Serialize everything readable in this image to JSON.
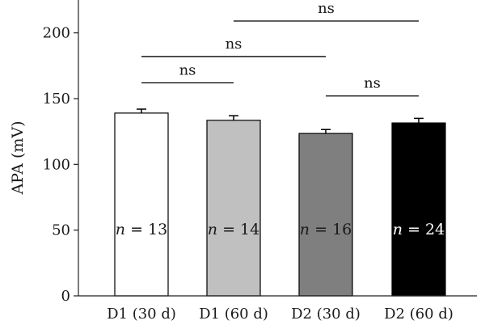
{
  "chart_data": {
    "type": "bar",
    "ylabel": "APA (mV)",
    "ylim": [
      0,
      225
    ],
    "yticks": [
      0,
      50,
      100,
      150,
      200
    ],
    "categories": [
      "D1 (30 d)",
      "D1 (60 d)",
      "D2 (30 d)",
      "D2 (60 d)"
    ],
    "values": [
      139,
      133.5,
      123.5,
      131.5
    ],
    "errors": [
      3,
      3.5,
      3,
      3.5
    ],
    "bar_colors": [
      "#ffffff",
      "#c0c0c0",
      "#7f7f7f",
      "#000000"
    ],
    "bar_labels": [
      {
        "var": "n",
        "text": " = 13",
        "color": "#1a1a1a"
      },
      {
        "var": "n",
        "text": " = 14",
        "color": "#1a1a1a"
      },
      {
        "var": "n",
        "text": " = 16",
        "color": "#1a1a1a"
      },
      {
        "var": "n",
        "text": " = 24",
        "color": "#ffffff"
      }
    ],
    "significance": [
      {
        "from": 0,
        "to": 1,
        "label": "ns",
        "y": 162
      },
      {
        "from": 2,
        "to": 3,
        "label": "ns",
        "y": 152
      },
      {
        "from": 0,
        "to": 2,
        "label": "ns",
        "y": 182
      },
      {
        "from": 1,
        "to": 3,
        "label": "ns",
        "y": 209
      }
    ]
  }
}
